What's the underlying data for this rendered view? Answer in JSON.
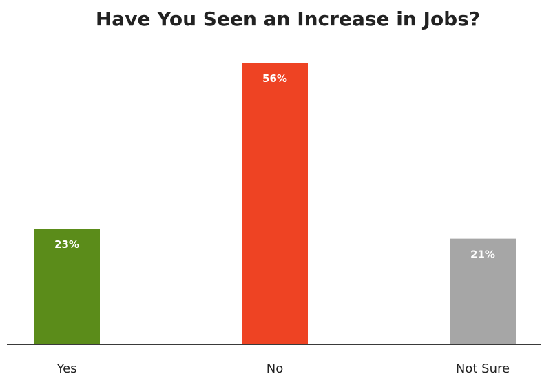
{
  "chart_data": {
    "type": "bar",
    "title": "Have You Seen an Increase in Jobs?",
    "categories": [
      "Yes",
      "No",
      "Not Sure"
    ],
    "values": [
      23,
      56,
      21
    ],
    "value_labels": [
      "23%",
      "56%",
      "21%"
    ],
    "colors": [
      "#5b8c1a",
      "#ee4323",
      "#a6a6a6"
    ],
    "xlabel": "",
    "ylabel": "",
    "ylim": [
      0,
      56
    ],
    "grid": false,
    "legend": "none"
  }
}
